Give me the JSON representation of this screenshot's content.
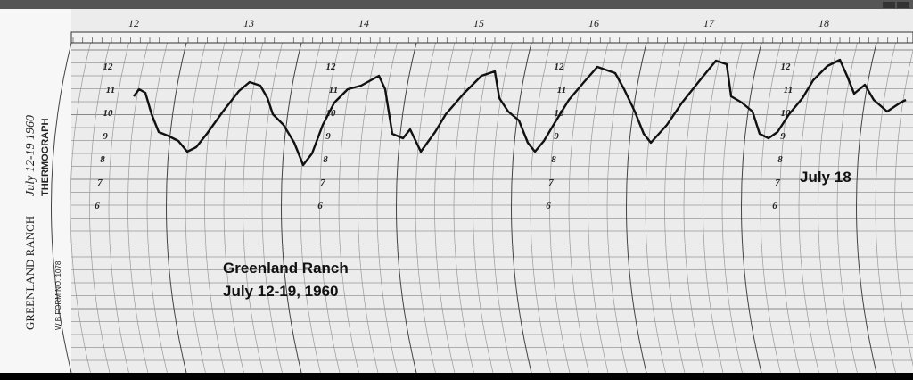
{
  "form": {
    "station": "GREENLAND RANCH",
    "instrument": "THERMOGRAPH",
    "form_number": "W B FORM NO. 1078",
    "handwritten_date": "July 12-19 1960"
  },
  "day_labels": [
    "12",
    "13",
    "14",
    "15",
    "16",
    "17",
    "18"
  ],
  "hour_marks": [
    "12",
    "11",
    "10",
    "9",
    "8",
    "7",
    "6"
  ],
  "annotations": {
    "title": "Greenland Ranch",
    "dates": "July 12-19, 1960",
    "marker": "July 18"
  }
}
